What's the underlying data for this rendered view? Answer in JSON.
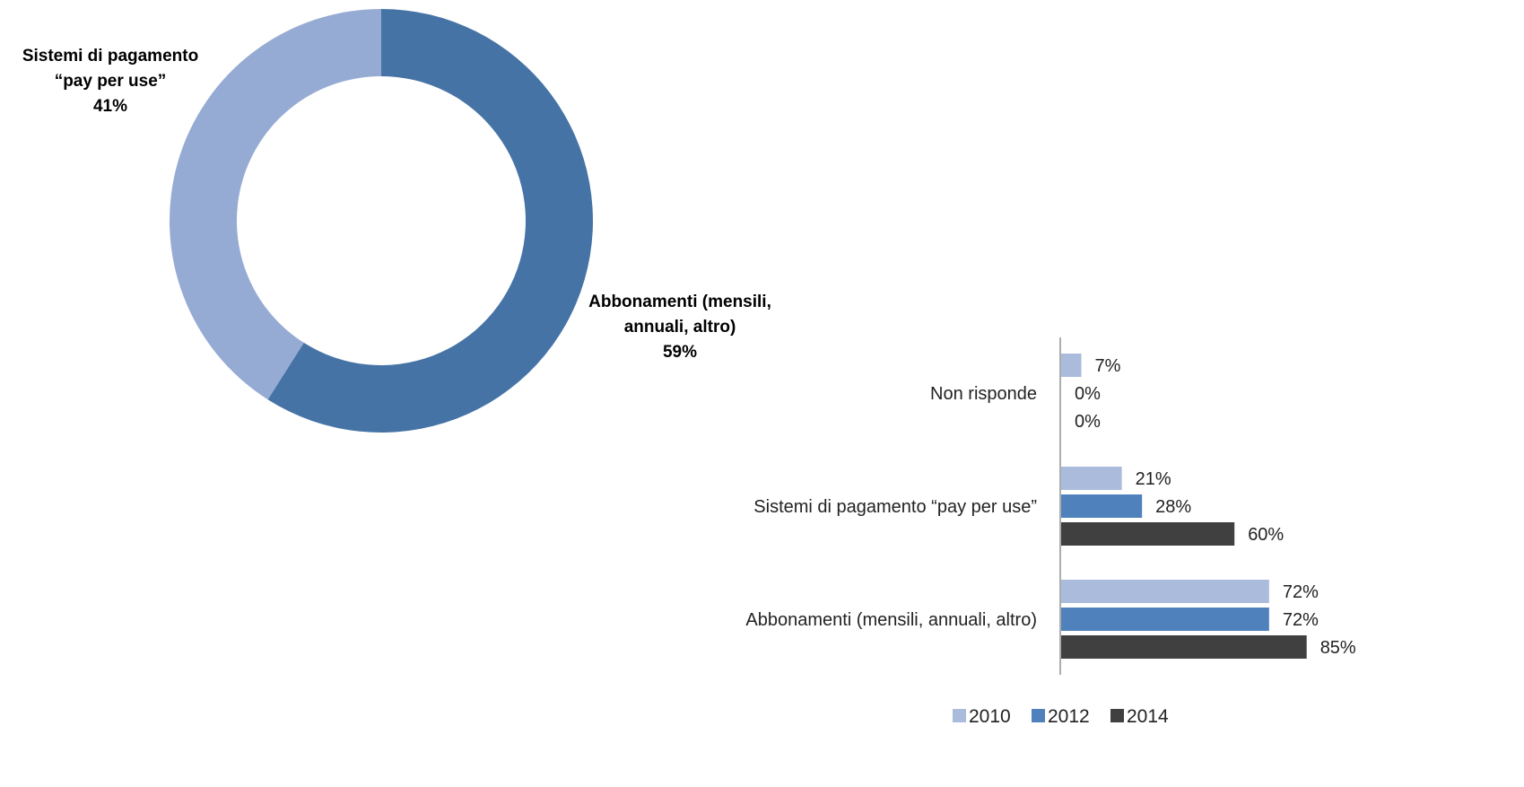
{
  "chart_data": [
    {
      "type": "pie",
      "style": "donut",
      "slices": [
        {
          "name": "Abbonamenti (mensili, annuali, altro)",
          "label_lines": [
            "Abbonamenti (mensili,",
            "annuali, altro)"
          ],
          "value": 59,
          "value_label": "59%",
          "color": "#4673a6"
        },
        {
          "name": "Sistemi di pagamento “pay per use”",
          "label_lines": [
            "Sistemi di pagamento",
            "“pay per use”"
          ],
          "value": 41,
          "value_label": "41%",
          "color": "#96abd3"
        }
      ]
    },
    {
      "type": "bar",
      "orientation": "horizontal",
      "categories": [
        "Non risponde",
        "Sistemi di pagamento “pay per use”",
        "Abbonamenti (mensili, annuali, altro)"
      ],
      "series": [
        {
          "name": "2010",
          "color": "#aabbdb",
          "values": [
            7,
            21,
            72
          ]
        },
        {
          "name": "2012",
          "color": "#4f81bd",
          "values": [
            0,
            28,
            72
          ]
        },
        {
          "name": "2014",
          "color": "#404040",
          "values": [
            0,
            60,
            85
          ]
        }
      ],
      "value_suffix": "%",
      "xlim": [
        0,
        100
      ],
      "legend": "bottom"
    }
  ]
}
